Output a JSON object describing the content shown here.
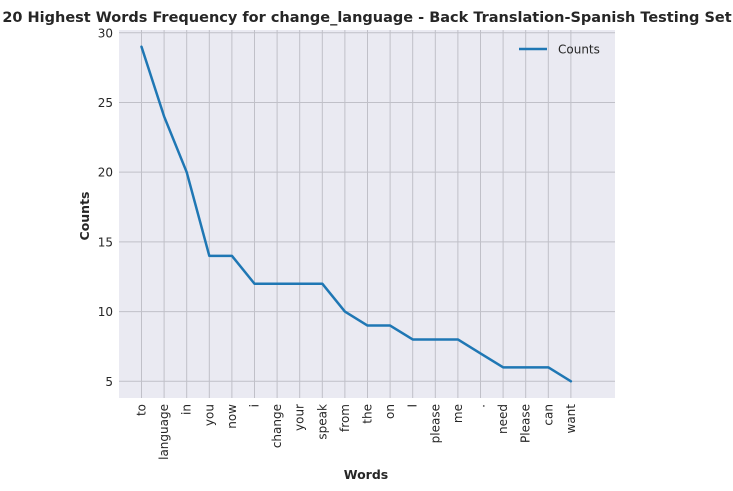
{
  "chart_data": {
    "type": "line",
    "title": "20 Highest Words Frequency for change_language - Back Translation-Spanish Testing Set",
    "xlabel": "Words",
    "ylabel": "Counts",
    "categories": [
      "to",
      "language",
      "in",
      "you",
      "now",
      "i",
      "change",
      "your",
      "speak",
      "from",
      "the",
      "on",
      "I",
      "please",
      "me",
      ".",
      "need",
      "Please",
      "can",
      "want"
    ],
    "series": [
      {
        "name": "Counts",
        "values": [
          29,
          24,
          20,
          14,
          14,
          12,
          12,
          12,
          12,
          10,
          9,
          9,
          8,
          8,
          8,
          7,
          6,
          6,
          6,
          5
        ],
        "color": "#1f77b4"
      }
    ],
    "yticks": [
      5,
      10,
      15,
      20,
      25,
      30
    ],
    "ylim": [
      3.8,
      30.2
    ],
    "grid": true,
    "legend_position": "top-right",
    "background_color": "#eaeaf2",
    "grid_color": "#c0c0c8"
  }
}
